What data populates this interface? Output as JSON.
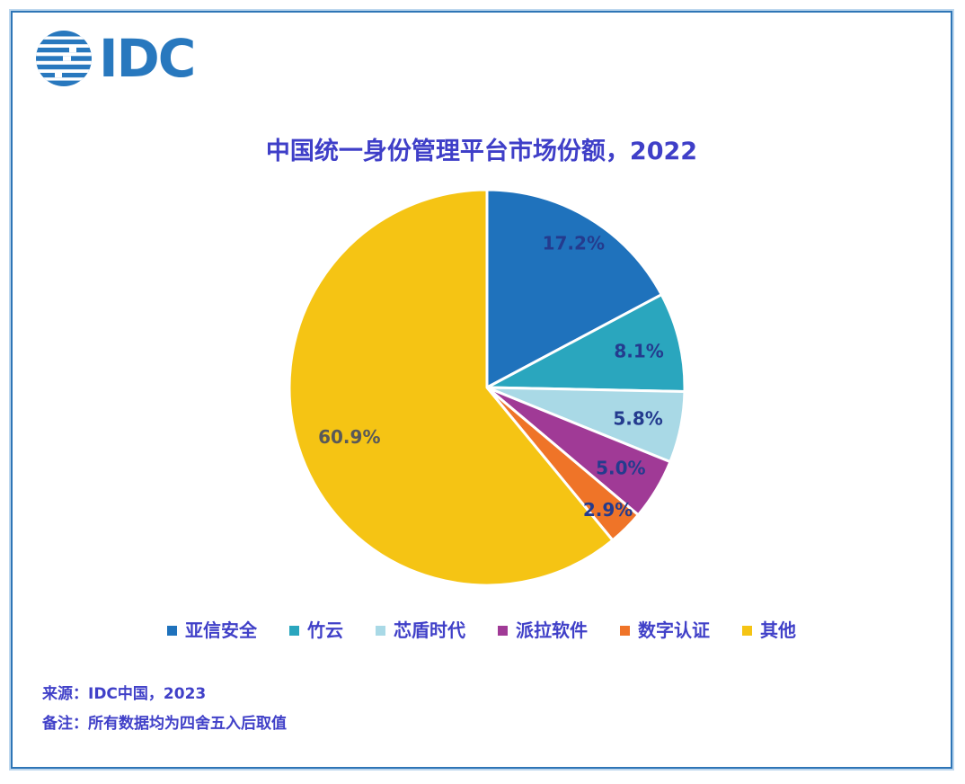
{
  "brand": {
    "logo_text": "IDC"
  },
  "chart_data": {
    "type": "pie",
    "title": "中国统一身份管理平台市场份额，2022",
    "unit": "percent",
    "direction": "clockwise",
    "start_angle": "12-oclock",
    "legend_position": "bottom",
    "label_color": "#243B8E",
    "label_color_other": "#595959",
    "series": [
      {
        "name": "亚信安全",
        "value": 17.2,
        "label": "17.2%",
        "color": "#1F72BC"
      },
      {
        "name": "竹云",
        "value": 8.1,
        "label": "8.1%",
        "color": "#2AA6BE"
      },
      {
        "name": "芯盾时代",
        "value": 5.8,
        "label": "5.8%",
        "color": "#A9D9E6"
      },
      {
        "name": "派拉软件",
        "value": 5.0,
        "label": "5.0%",
        "color": "#A03A96"
      },
      {
        "name": "数字认证",
        "value": 2.9,
        "label": "2.9%",
        "color": "#EF7428"
      },
      {
        "name": "其他",
        "value": 60.9,
        "label": "60.9%",
        "color": "#F5C414"
      }
    ]
  },
  "footer": {
    "source": "来源：IDC中国，2023",
    "note": "备注：所有数据均为四舍五入后取值"
  }
}
